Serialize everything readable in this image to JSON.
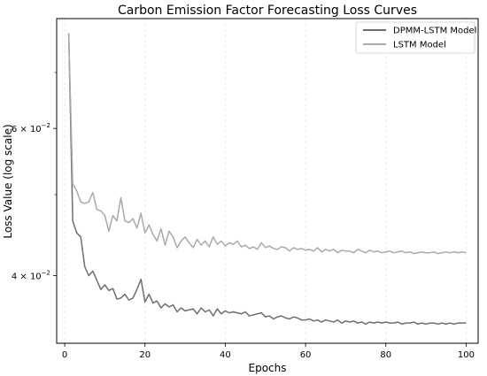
{
  "chart_data": {
    "type": "line",
    "title": "Carbon Emission Factor Forecasting Loss Curves",
    "xlabel": "Epochs",
    "ylabel": "Loss Value (log scale)",
    "xlim": [
      -2,
      103
    ],
    "ylim": [
      0.0332,
      0.0812
    ],
    "yscale": "log",
    "x_ticks": [
      0,
      20,
      40,
      60,
      80,
      100
    ],
    "x_tick_labels": [
      "0",
      "20",
      "40",
      "60",
      "80",
      "100"
    ],
    "y_major_ticks": [
      0.04,
      0.06
    ],
    "y_major_tick_labels": [
      {
        "mantissa": "4 × 10",
        "exponent": "−2"
      },
      {
        "mantissa": "6 × 10",
        "exponent": "−2"
      }
    ],
    "y_minor_ticks": [
      0.05,
      0.07
    ],
    "grid": "vertical-dashed",
    "legend_position": "top-right",
    "series": [
      {
        "name": "DPMM-LSTM Model",
        "color": "#6e6e6e",
        "x": [
          1,
          2,
          3,
          4,
          5,
          6,
          7,
          8,
          9,
          10,
          11,
          12,
          13,
          14,
          15,
          16,
          17,
          18,
          19,
          20,
          21,
          22,
          23,
          24,
          25,
          26,
          27,
          28,
          29,
          30,
          31,
          32,
          33,
          34,
          35,
          36,
          37,
          38,
          39,
          40,
          41,
          42,
          43,
          44,
          45,
          46,
          47,
          48,
          49,
          50,
          51,
          52,
          53,
          54,
          55,
          56,
          57,
          58,
          59,
          60,
          61,
          62,
          63,
          64,
          65,
          66,
          67,
          68,
          69,
          70,
          71,
          72,
          73,
          74,
          75,
          76,
          77,
          78,
          79,
          80,
          81,
          82,
          83,
          84,
          85,
          86,
          87,
          88,
          89,
          90,
          91,
          92,
          93,
          94,
          95,
          96,
          97,
          98,
          99,
          100
        ],
        "values": [
          0.078,
          0.0465,
          0.045,
          0.0445,
          0.041,
          0.04,
          0.0405,
          0.0395,
          0.0385,
          0.039,
          0.0384,
          0.0386,
          0.0375,
          0.0376,
          0.038,
          0.0374,
          0.0376,
          0.0385,
          0.0396,
          0.0372,
          0.038,
          0.0371,
          0.0373,
          0.0366,
          0.037,
          0.0367,
          0.0369,
          0.0362,
          0.0366,
          0.0363,
          0.0364,
          0.0365,
          0.036,
          0.0366,
          0.0362,
          0.0364,
          0.0358,
          0.0365,
          0.036,
          0.0363,
          0.0361,
          0.0362,
          0.0361,
          0.036,
          0.0362,
          0.0358,
          0.0359,
          0.036,
          0.0361,
          0.0357,
          0.0358,
          0.0355,
          0.0357,
          0.0358,
          0.0356,
          0.0355,
          0.0357,
          0.0356,
          0.0354,
          0.0354,
          0.0355,
          0.0353,
          0.0354,
          0.0352,
          0.0354,
          0.0353,
          0.0352,
          0.0354,
          0.0351,
          0.0353,
          0.0352,
          0.0353,
          0.0351,
          0.0352,
          0.035,
          0.0352,
          0.0351,
          0.0352,
          0.0351,
          0.0352,
          0.0351,
          0.0351,
          0.0352,
          0.035,
          0.0351,
          0.0351,
          0.0352,
          0.035,
          0.0351,
          0.035,
          0.0351,
          0.0351,
          0.035,
          0.0351,
          0.035,
          0.0351,
          0.035,
          0.0351,
          0.0351,
          0.0351
        ]
      },
      {
        "name": "LSTM Model",
        "color": "#aaaaaa",
        "x": [
          1,
          2,
          3,
          4,
          5,
          6,
          7,
          8,
          9,
          10,
          11,
          12,
          13,
          14,
          15,
          16,
          17,
          18,
          19,
          20,
          21,
          22,
          23,
          24,
          25,
          26,
          27,
          28,
          29,
          30,
          31,
          32,
          33,
          34,
          35,
          36,
          37,
          38,
          39,
          40,
          41,
          42,
          43,
          44,
          45,
          46,
          47,
          48,
          49,
          50,
          51,
          52,
          53,
          54,
          55,
          56,
          57,
          58,
          59,
          60,
          61,
          62,
          63,
          64,
          65,
          66,
          67,
          68,
          69,
          70,
          71,
          72,
          73,
          74,
          75,
          76,
          77,
          78,
          79,
          80,
          81,
          82,
          83,
          84,
          85,
          86,
          87,
          88,
          89,
          90,
          91,
          92,
          93,
          94,
          95,
          96,
          97,
          98,
          99,
          100
        ],
        "values": [
          0.078,
          0.0515,
          0.0505,
          0.049,
          0.0488,
          0.049,
          0.0503,
          0.048,
          0.0478,
          0.0472,
          0.0452,
          0.0472,
          0.0465,
          0.0496,
          0.0465,
          0.0463,
          0.0468,
          0.0456,
          0.0475,
          0.045,
          0.046,
          0.0448,
          0.044,
          0.0455,
          0.0435,
          0.0452,
          0.0445,
          0.0432,
          0.044,
          0.0445,
          0.0438,
          0.0432,
          0.0442,
          0.0435,
          0.044,
          0.0433,
          0.0445,
          0.0436,
          0.044,
          0.0434,
          0.0438,
          0.0436,
          0.044,
          0.0433,
          0.0435,
          0.0431,
          0.0433,
          0.043,
          0.0438,
          0.0432,
          0.0434,
          0.0431,
          0.043,
          0.0433,
          0.0432,
          0.0428,
          0.0432,
          0.043,
          0.0431,
          0.0429,
          0.043,
          0.0428,
          0.0432,
          0.0427,
          0.043,
          0.0428,
          0.043,
          0.0426,
          0.0429,
          0.0428,
          0.0428,
          0.0426,
          0.043,
          0.0428,
          0.0426,
          0.0429,
          0.0427,
          0.0428,
          0.0426,
          0.0427,
          0.0428,
          0.0426,
          0.0427,
          0.0428,
          0.0426,
          0.0427,
          0.0425,
          0.0426,
          0.0427,
          0.0426,
          0.0426,
          0.0427,
          0.0425,
          0.0426,
          0.0427,
          0.0426,
          0.0427,
          0.0426,
          0.0427,
          0.0426
        ]
      }
    ]
  }
}
